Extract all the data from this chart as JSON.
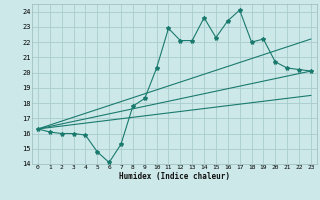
{
  "title": "",
  "xlabel": "Humidex (Indice chaleur)",
  "ylabel": "",
  "background_color": "#cce8e8",
  "grid_color": "#aacccc",
  "line_color": "#1a7a6e",
  "xlim": [
    -0.5,
    23.5
  ],
  "ylim": [
    14,
    24.5
  ],
  "yticks": [
    14,
    15,
    16,
    17,
    18,
    19,
    20,
    21,
    22,
    23,
    24
  ],
  "xticks": [
    0,
    1,
    2,
    3,
    4,
    5,
    6,
    7,
    8,
    9,
    10,
    11,
    12,
    13,
    14,
    15,
    16,
    17,
    18,
    19,
    20,
    21,
    22,
    23
  ],
  "series": [
    {
      "x": [
        0,
        1,
        2,
        3,
        4,
        5,
        6,
        7,
        8,
        9,
        10,
        11,
        12,
        13,
        14,
        15,
        16,
        17,
        18,
        19,
        20,
        21,
        22,
        23
      ],
      "y": [
        16.3,
        16.1,
        16.0,
        16.0,
        15.9,
        14.8,
        14.1,
        15.3,
        17.8,
        18.3,
        20.3,
        22.9,
        22.1,
        22.1,
        23.6,
        22.3,
        23.4,
        24.1,
        22.0,
        22.2,
        20.7,
        20.3,
        20.2,
        20.1
      ],
      "marker": "*",
      "markersize": 3,
      "linewidth": 0.8,
      "has_marker": true
    },
    {
      "x": [
        0,
        23
      ],
      "y": [
        16.3,
        22.2
      ],
      "marker": null,
      "markersize": 0,
      "linewidth": 0.8,
      "has_marker": false
    },
    {
      "x": [
        0,
        23
      ],
      "y": [
        16.3,
        20.1
      ],
      "marker": null,
      "markersize": 0,
      "linewidth": 0.8,
      "has_marker": false
    },
    {
      "x": [
        0,
        23
      ],
      "y": [
        16.3,
        18.5
      ],
      "marker": null,
      "markersize": 0,
      "linewidth": 0.8,
      "has_marker": false
    }
  ]
}
